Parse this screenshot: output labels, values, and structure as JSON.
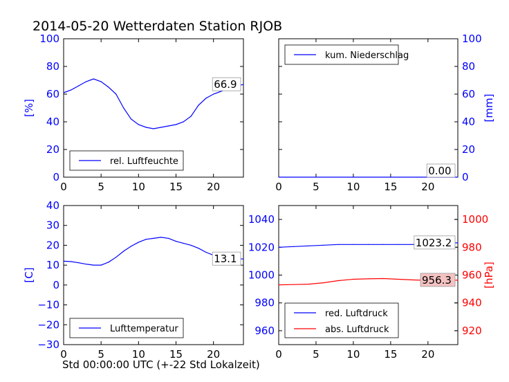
{
  "title": "2014-05-20 Wetterdaten Station RJOB",
  "xlabel": "Std 00:00:00 UTC (+-22 Std Lokalzeit)",
  "colors": {
    "blue": "#0000ff",
    "red": "#ff0000",
    "label_bg": "#f5c2c2"
  },
  "chart_data": [
    {
      "type": "line",
      "ylabel": "[%]",
      "xlim": [
        0,
        24
      ],
      "ylim": [
        0,
        100
      ],
      "xticks": [
        "0",
        "5",
        "10",
        "15",
        "20"
      ],
      "yticks": [
        "0",
        "20",
        "40",
        "60",
        "80",
        "100"
      ],
      "legend": "bottom-left",
      "last_value_label": "66.9",
      "series": [
        {
          "name": "rel. Luftfeuchte",
          "color": "#0000ff",
          "x": [
            0,
            1,
            2,
            3,
            4,
            5,
            6,
            7,
            8,
            9,
            10,
            11,
            12,
            13,
            14,
            15,
            16,
            17,
            18,
            19,
            20,
            21,
            22,
            23,
            24
          ],
          "y": [
            61,
            63,
            66,
            69,
            71,
            69,
            65,
            60,
            50,
            42,
            38,
            36,
            35,
            36,
            37,
            38,
            40,
            44,
            52,
            57,
            60,
            62,
            64,
            66,
            66.9
          ]
        }
      ]
    },
    {
      "type": "line",
      "ylabel": "[mm]",
      "xlim": [
        0,
        24
      ],
      "ylim": [
        0,
        100
      ],
      "xticks": [
        "0",
        "5",
        "10",
        "15",
        "20"
      ],
      "yticks": [
        "0",
        "20",
        "40",
        "60",
        "80",
        "100"
      ],
      "legend": "top-left",
      "last_value_label": "0.00",
      "series": [
        {
          "name": "kum. Niederschlag",
          "color": "#0000ff",
          "x": [
            0,
            24
          ],
          "y": [
            0,
            0
          ]
        }
      ]
    },
    {
      "type": "line",
      "ylabel": "[C]",
      "xlim": [
        0,
        24
      ],
      "ylim": [
        -30,
        40
      ],
      "xticks": [
        "0",
        "5",
        "10",
        "15",
        "20"
      ],
      "yticks": [
        "−30",
        "−20",
        "−10",
        "0",
        "10",
        "20",
        "30",
        "40"
      ],
      "legend": "bottom-left",
      "last_value_label": "13.1",
      "series": [
        {
          "name": "Lufttemperatur",
          "color": "#0000ff",
          "x": [
            0,
            1,
            2,
            3,
            4,
            5,
            6,
            7,
            8,
            9,
            10,
            11,
            12,
            13,
            14,
            15,
            16,
            17,
            18,
            19,
            20,
            21,
            22,
            23,
            24
          ],
          "y": [
            12,
            11.8,
            11.2,
            10.5,
            10,
            10,
            11.5,
            14,
            17,
            19.5,
            21.5,
            23,
            23.5,
            24,
            23.5,
            22,
            21,
            20,
            18.5,
            16.5,
            15,
            14,
            13.5,
            13.2,
            13.1
          ]
        }
      ]
    },
    {
      "type": "line",
      "ylabel": "[hPa]",
      "xlim": [
        0,
        24
      ],
      "ylim": [
        950,
        1050
      ],
      "ylim_right": [
        910,
        1010
      ],
      "xticks": [
        "0",
        "5",
        "10",
        "15",
        "20"
      ],
      "yticks": [
        "960",
        "980",
        "1000",
        "1020",
        "1040"
      ],
      "yticks_right": [
        "920",
        "940",
        "960",
        "980",
        "1000"
      ],
      "legend": "bottom-left",
      "series": [
        {
          "name": "red. Luftdruck",
          "color": "#0000ff",
          "axis": "left",
          "last_value_label": "1023.2",
          "x": [
            0,
            2,
            4,
            6,
            8,
            10,
            12,
            14,
            16,
            18,
            20,
            22,
            24
          ],
          "y": [
            1020,
            1020.5,
            1021,
            1021.5,
            1022,
            1022,
            1022,
            1022,
            1022,
            1022,
            1022.5,
            1023,
            1023.2
          ]
        },
        {
          "name": "abs. Luftdruck",
          "color": "#ff0000",
          "axis": "right",
          "last_value_label": "956.3",
          "x": [
            0,
            2,
            4,
            6,
            8,
            10,
            12,
            14,
            16,
            18,
            20,
            22,
            24
          ],
          "y": [
            953,
            953.2,
            953.5,
            954.5,
            956,
            957,
            957.3,
            957.5,
            957,
            956.5,
            956.2,
            956.3,
            956.3
          ]
        }
      ]
    }
  ]
}
